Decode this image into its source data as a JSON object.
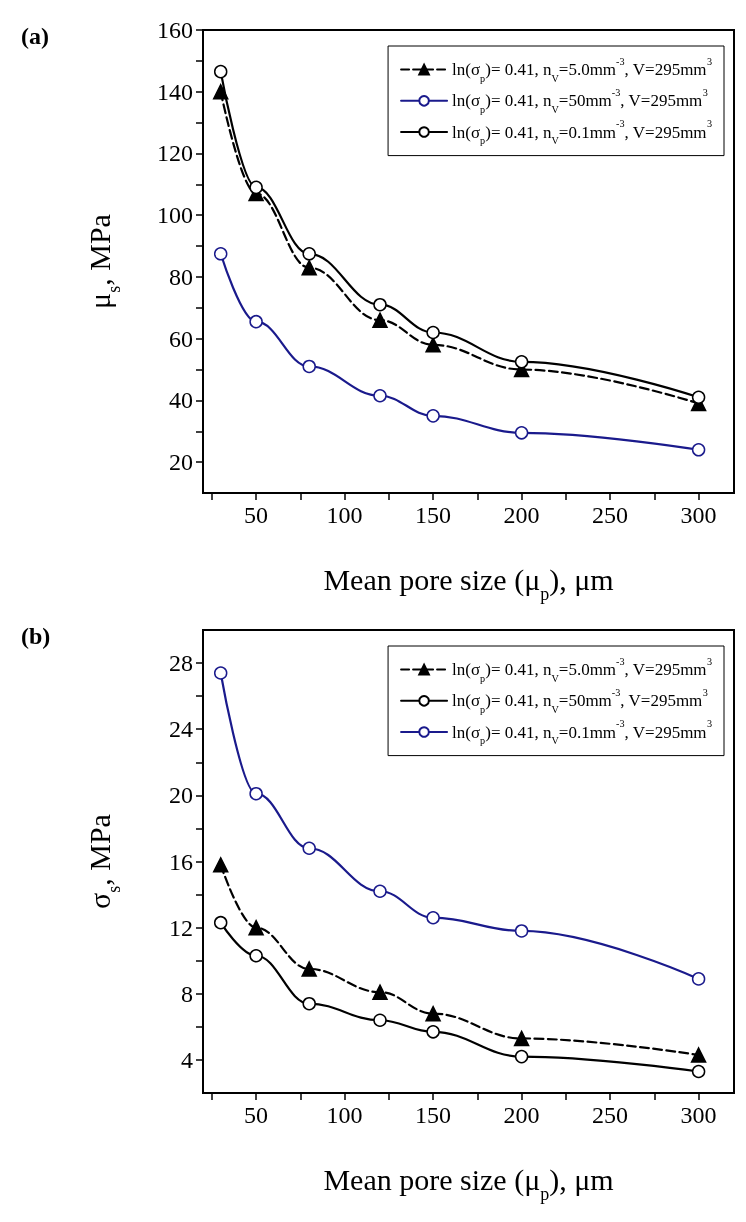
{
  "chart_data": [
    {
      "type": "line",
      "title": "(a)",
      "xlabel": "Mean pore size (μ$_{p}$), μm",
      "ylabel": "μ$_{s}$, MPa",
      "x": [
        30,
        50,
        80,
        120,
        150,
        200,
        300
      ],
      "xlim": [
        20,
        320
      ],
      "xticks": [
        {
          "value": 25,
          "label": null
        },
        50,
        {
          "value": 75,
          "label": null
        },
        100,
        {
          "value": 125,
          "label": null
        },
        150,
        {
          "value": 175,
          "label": null
        },
        200,
        {
          "value": 225,
          "label": null
        },
        250,
        {
          "value": 275,
          "label": null
        },
        300
      ],
      "ylim": [
        10,
        160
      ],
      "yticks": [
        20,
        {
          "value": 30,
          "label": null
        },
        40,
        {
          "value": 50,
          "label": null
        },
        60,
        {
          "value": 70,
          "label": null
        },
        80,
        {
          "value": 90,
          "label": null
        },
        100,
        {
          "value": 110,
          "label": null
        },
        120,
        {
          "value": 130,
          "label": null
        },
        140,
        {
          "value": 150,
          "label": null
        },
        160
      ],
      "legend": "top right",
      "series": [
        {
          "name": "ln(σ$_{p}$)= 0.41, n$_{V}$=5.0mm$^{-3}$, V=295mm$^{3}$",
          "color": "#000000",
          "marker": "triangle",
          "line_style": "dashed",
          "values": [
            140,
            107,
            83,
            66,
            58,
            50,
            39
          ]
        },
        {
          "name": "ln(σ$_{p}$)= 0.41, n$_{V}$=50mm$^{-3}$, V=295mm$^{3}$",
          "color": "#1a1a8c",
          "marker": "circle",
          "line_style": "solid",
          "values": [
            87.5,
            65.5,
            51,
            41.5,
            35,
            29.5,
            24
          ]
        },
        {
          "name": "ln(σ$_{p}$)= 0.41, n$_{V}$=0.1mm$^{-3}$, V=295mm$^{3}$",
          "color": "#000000",
          "marker": "circle",
          "line_style": "solid",
          "values": [
            146.5,
            109,
            87.5,
            71,
            62,
            52.5,
            41
          ]
        }
      ]
    },
    {
      "type": "line",
      "title": "(b)",
      "xlabel": "Mean pore size (μ$_{p}$), μm",
      "ylabel": "σ$_{s}$, MPa",
      "x": [
        30,
        50,
        80,
        120,
        150,
        200,
        300
      ],
      "xlim": [
        20,
        320
      ],
      "xticks": [
        {
          "value": 25,
          "label": null
        },
        50,
        {
          "value": 75,
          "label": null
        },
        100,
        {
          "value": 125,
          "label": null
        },
        150,
        {
          "value": 175,
          "label": null
        },
        200,
        {
          "value": 225,
          "label": null
        },
        250,
        {
          "value": 275,
          "label": null
        },
        300
      ],
      "ylim": [
        2,
        30
      ],
      "yticks": [
        4,
        {
          "value": 6,
          "label": null
        },
        8,
        {
          "value": 10,
          "label": null
        },
        12,
        {
          "value": 14,
          "label": null
        },
        16,
        {
          "value": 18,
          "label": null
        },
        20,
        {
          "value": 22,
          "label": null
        },
        24,
        {
          "value": 26,
          "label": null
        },
        28
      ],
      "legend": "top right",
      "series": [
        {
          "name": "ln(σ$_{p}$)= 0.41, n$_{V}$=5.0mm$^{-3}$, V=295mm$^{3}$",
          "color": "#000000",
          "marker": "triangle",
          "line_style": "dashed",
          "values": [
            15.8,
            12.0,
            9.5,
            8.1,
            6.8,
            5.3,
            4.3
          ]
        },
        {
          "name": "ln(σ$_{p}$)= 0.41, n$_{V}$=50mm$^{-3}$, V=295mm$^{3}$",
          "color": "#000000",
          "marker": "circle",
          "line_style": "solid",
          "values": [
            12.3,
            10.3,
            7.4,
            6.4,
            5.7,
            4.2,
            3.3
          ]
        },
        {
          "name": "ln(σ$_{p}$)= 0.41, n$_{V}$=0.1mm$^{-3}$, V=295mm$^{3}$",
          "color": "#1a1a8c",
          "marker": "circle",
          "line_style": "solid",
          "values": [
            27.4,
            20.1,
            16.8,
            14.2,
            12.6,
            11.8,
            8.9
          ]
        }
      ]
    }
  ]
}
